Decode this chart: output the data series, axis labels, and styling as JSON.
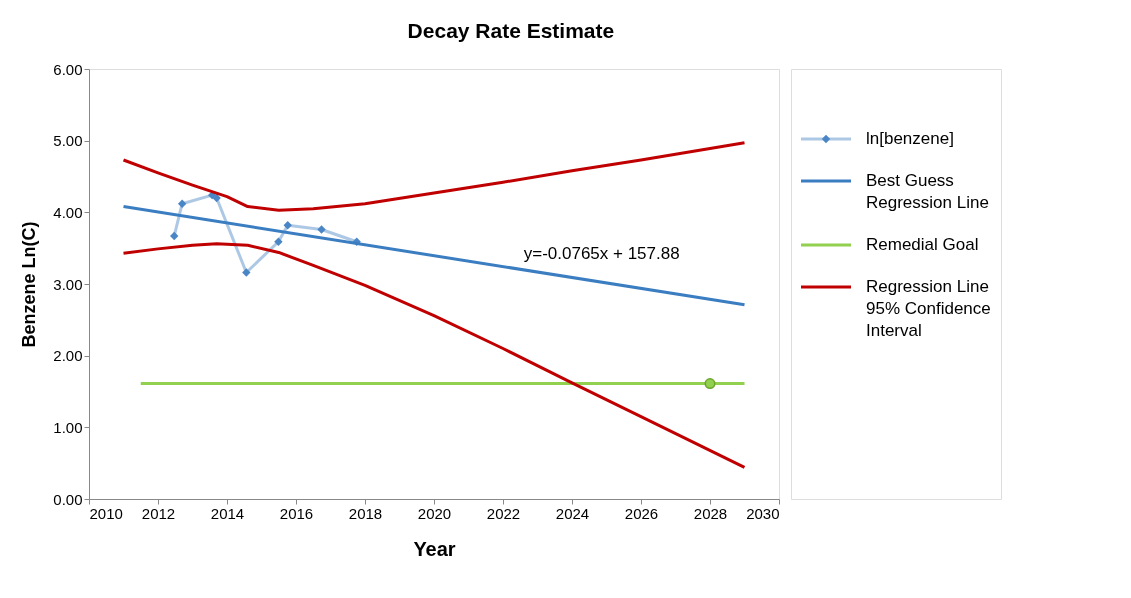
{
  "chart_data": {
    "type": "line",
    "title": "Decay Rate Estimate",
    "xlabel": "Year",
    "ylabel": "Benzene Ln(C)",
    "series": [
      {
        "name": "ln[benzene]",
        "marker": "diamond",
        "color": "#4a86c5",
        "x": [
          2012.47,
          2012.7,
          2013.57,
          2013.7,
          2014.56,
          2015.49,
          2015.76,
          2016.74,
          2017.76
        ],
        "values": [
          3.67,
          4.12,
          4.24,
          4.2,
          3.16,
          3.59,
          3.82,
          3.76,
          3.59
        ]
      },
      {
        "name": "Best Guess Regression Line",
        "color": "#3a7dc1",
        "x": [
          2011,
          2029
        ],
        "values": [
          4.08,
          2.71
        ]
      },
      {
        "name": "Remedial Goal",
        "color": "#92d050",
        "x": [
          2011.5,
          2029
        ],
        "values": [
          1.61,
          1.61
        ]
      },
      {
        "type": "scatter",
        "marker": "circle",
        "color": "#92d050",
        "x": [
          2028
        ],
        "values": [
          1.61
        ]
      },
      {
        "name": "Regression Line 95% Confidence Interval",
        "color": "#c00000",
        "x": [
          2011,
          2012,
          2013,
          2014,
          2014.6,
          2015.5,
          2016.5,
          2018,
          2020,
          2022,
          2024,
          2026,
          2029
        ],
        "values": [
          4.73,
          4.55,
          4.38,
          4.22,
          4.08,
          4.03,
          4.05,
          4.12,
          4.27,
          4.42,
          4.58,
          4.73,
          4.97
        ]
      },
      {
        "color": "#c00000",
        "x": [
          2011,
          2012,
          2013,
          2013.7,
          2014.6,
          2015.5,
          2016.5,
          2018,
          2020,
          2022,
          2024,
          2026,
          2029
        ],
        "values": [
          3.43,
          3.49,
          3.54,
          3.56,
          3.54,
          3.44,
          3.26,
          2.98,
          2.56,
          2.1,
          1.62,
          1.15,
          0.44
        ]
      }
    ],
    "xlim": [
      2010,
      2030
    ],
    "xticks": [
      2010,
      2012,
      2014,
      2016,
      2018,
      2020,
      2022,
      2024,
      2026,
      2028,
      2030
    ],
    "ylim": [
      0,
      6
    ],
    "yticks": [
      {
        "value": 0,
        "label": "0.00"
      },
      {
        "value": 1,
        "label": "1.00"
      },
      {
        "value": 2,
        "label": "2.00"
      },
      {
        "value": 3,
        "label": "3.00"
      },
      {
        "value": 4,
        "label": "4.00"
      },
      {
        "value": 5,
        "label": "5.00"
      },
      {
        "value": 6,
        "label": "6.00"
      }
    ],
    "annotations": [
      "y=-0.0765x + 157.88"
    ],
    "grid": false,
    "legend": "right"
  }
}
